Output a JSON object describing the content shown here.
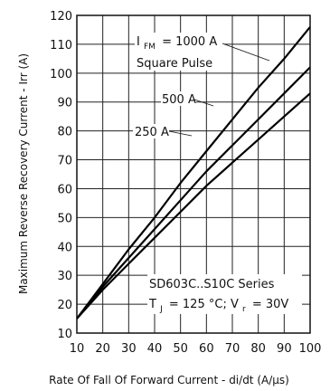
{
  "chart_data": {
    "type": "line",
    "title": "",
    "xlabel": "Rate Of Fall Of Forward Current - di/dt (A/µs)",
    "ylabel": "Maximum Reverse Recovery Current - Irr (A)",
    "xlim": [
      10,
      100
    ],
    "ylim": [
      10,
      120
    ],
    "xticks": [
      10,
      20,
      30,
      40,
      50,
      60,
      70,
      80,
      90,
      100
    ],
    "yticks": [
      10,
      20,
      30,
      40,
      50,
      60,
      70,
      80,
      90,
      100,
      110,
      120
    ],
    "grid": true,
    "series": [
      {
        "name": "I_FM = 1000 A Square Pulse",
        "x": [
          10,
          20,
          30,
          40,
          50,
          60,
          70,
          80,
          90,
          100
        ],
        "y": [
          15,
          27,
          39,
          50,
          62,
          73,
          84,
          95,
          105,
          116
        ]
      },
      {
        "name": "500 A",
        "x": [
          10,
          20,
          30,
          40,
          50,
          60,
          70,
          80,
          90,
          100
        ],
        "y": [
          15,
          26,
          36,
          46,
          56,
          66,
          75,
          84,
          93,
          102
        ]
      },
      {
        "name": "250 A",
        "x": [
          10,
          20,
          30,
          40,
          50,
          60,
          70,
          80,
          90,
          100
        ],
        "y": [
          15,
          25,
          34,
          43,
          52,
          61,
          69,
          77,
          85,
          93
        ]
      }
    ],
    "annotations": {
      "label_1000_main": "I",
      "label_1000_sub": "FM",
      "label_1000_rest": "= 1000 A",
      "label_square": "Square Pulse",
      "label_500": "500 A",
      "label_250": "250 A",
      "series_name": "SD603C..S10C Series",
      "cond_t": "T",
      "cond_t_sub": "J",
      "cond_mid": "= 125 °C; V",
      "cond_v_sub": "r",
      "cond_end": "= 30V"
    }
  }
}
